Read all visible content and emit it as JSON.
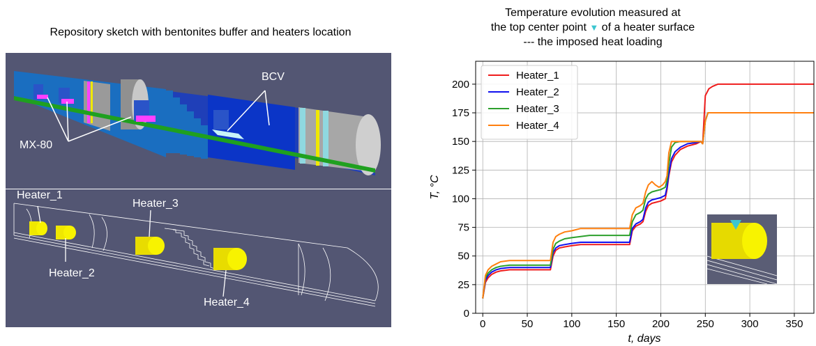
{
  "left_figure": {
    "title": "Repository sketch with bentonites buffer and heaters location",
    "labels": {
      "bcv": "BCV",
      "mx80": "MX-80",
      "heater_1": "Heater_1",
      "heater_2": "Heater_2",
      "heater_3": "Heater_3",
      "heater_4": "Heater_4"
    }
  },
  "right_figure": {
    "title_line_1": "Temperature evolution measured at",
    "title_line_2_pre": "the top center point",
    "title_marker": "▼",
    "title_line_2_post": "of a heater surface",
    "title_line_3": "--- the imposed heat loading"
  },
  "colors": {
    "panel_bg": "#535673",
    "heater_1": "#ef1c1c",
    "heater_2": "#1010ee",
    "heater_3": "#2ca02c",
    "heater_4": "#ff7f0e",
    "marker": "#3cc6d0"
  },
  "chart_data": {
    "type": "line",
    "xlabel": "t,  days",
    "ylabel": "T,  °C",
    "xlim": [
      -8,
      372
    ],
    "ylim": [
      0,
      220
    ],
    "xticks": [
      0,
      50,
      100,
      150,
      200,
      250,
      300,
      350
    ],
    "yticks": [
      0,
      25,
      50,
      75,
      100,
      125,
      150,
      175,
      200
    ],
    "grid": true,
    "legend_position": "top-left",
    "series": [
      {
        "name": "Heater_1",
        "color": "#ef1c1c",
        "points": [
          [
            0,
            13
          ],
          [
            3,
            27
          ],
          [
            6,
            31
          ],
          [
            10,
            34
          ],
          [
            15,
            36
          ],
          [
            20,
            37
          ],
          [
            30,
            38
          ],
          [
            50,
            38
          ],
          [
            76,
            38
          ],
          [
            79,
            50
          ],
          [
            82,
            55
          ],
          [
            86,
            57
          ],
          [
            92,
            58
          ],
          [
            100,
            59
          ],
          [
            110,
            60
          ],
          [
            140,
            60
          ],
          [
            165,
            60
          ],
          [
            168,
            72
          ],
          [
            172,
            76
          ],
          [
            177,
            78
          ],
          [
            180,
            80
          ],
          [
            183,
            89
          ],
          [
            186,
            94
          ],
          [
            190,
            96
          ],
          [
            195,
            97
          ],
          [
            200,
            98
          ],
          [
            205,
            100
          ],
          [
            207,
            108
          ],
          [
            209,
            120
          ],
          [
            212,
            132
          ],
          [
            216,
            138
          ],
          [
            222,
            143
          ],
          [
            230,
            146
          ],
          [
            240,
            148
          ],
          [
            245,
            150
          ],
          [
            247,
            148
          ],
          [
            250,
            190
          ],
          [
            254,
            196
          ],
          [
            258,
            198
          ],
          [
            264,
            200
          ],
          [
            372,
            200
          ]
        ]
      },
      {
        "name": "Heater_2",
        "color": "#1010ee",
        "points": [
          [
            0,
            13
          ],
          [
            3,
            29
          ],
          [
            6,
            33
          ],
          [
            10,
            36
          ],
          [
            15,
            38
          ],
          [
            20,
            39
          ],
          [
            30,
            40
          ],
          [
            50,
            40
          ],
          [
            76,
            40
          ],
          [
            79,
            53
          ],
          [
            82,
            57
          ],
          [
            86,
            59
          ],
          [
            92,
            60
          ],
          [
            100,
            61
          ],
          [
            110,
            62
          ],
          [
            140,
            62
          ],
          [
            165,
            62
          ],
          [
            168,
            74
          ],
          [
            172,
            78
          ],
          [
            177,
            80
          ],
          [
            180,
            82
          ],
          [
            183,
            92
          ],
          [
            186,
            97
          ],
          [
            190,
            99
          ],
          [
            195,
            100
          ],
          [
            200,
            101
          ],
          [
            205,
            103
          ],
          [
            207,
            110
          ],
          [
            209,
            122
          ],
          [
            212,
            135
          ],
          [
            216,
            141
          ],
          [
            222,
            145
          ],
          [
            230,
            148
          ],
          [
            240,
            149
          ],
          [
            245,
            150
          ],
          [
            247,
            148
          ],
          [
            250,
            168
          ],
          [
            253,
            175
          ],
          [
            372,
            175
          ]
        ]
      },
      {
        "name": "Heater_3",
        "color": "#2ca02c",
        "points": [
          [
            0,
            13
          ],
          [
            3,
            31
          ],
          [
            6,
            35
          ],
          [
            10,
            38
          ],
          [
            15,
            40
          ],
          [
            20,
            41
          ],
          [
            30,
            42
          ],
          [
            50,
            42
          ],
          [
            76,
            42
          ],
          [
            79,
            56
          ],
          [
            82,
            61
          ],
          [
            86,
            63
          ],
          [
            92,
            65
          ],
          [
            100,
            66
          ],
          [
            110,
            67
          ],
          [
            120,
            68
          ],
          [
            140,
            68
          ],
          [
            165,
            68
          ],
          [
            168,
            80
          ],
          [
            172,
            86
          ],
          [
            177,
            88
          ],
          [
            180,
            90
          ],
          [
            183,
            100
          ],
          [
            186,
            104
          ],
          [
            190,
            106
          ],
          [
            195,
            107
          ],
          [
            200,
            108
          ],
          [
            205,
            110
          ],
          [
            207,
            116
          ],
          [
            209,
            130
          ],
          [
            212,
            145
          ],
          [
            216,
            149
          ],
          [
            222,
            150
          ],
          [
            240,
            150
          ],
          [
            245,
            150
          ],
          [
            247,
            148
          ],
          [
            250,
            168
          ],
          [
            253,
            175
          ],
          [
            372,
            175
          ]
        ]
      },
      {
        "name": "Heater_4",
        "color": "#ff7f0e",
        "points": [
          [
            0,
            13
          ],
          [
            3,
            33
          ],
          [
            6,
            38
          ],
          [
            10,
            41
          ],
          [
            15,
            43
          ],
          [
            20,
            45
          ],
          [
            30,
            46
          ],
          [
            50,
            46
          ],
          [
            76,
            46
          ],
          [
            79,
            62
          ],
          [
            82,
            67
          ],
          [
            86,
            69
          ],
          [
            92,
            71
          ],
          [
            100,
            72
          ],
          [
            110,
            74
          ],
          [
            120,
            74
          ],
          [
            140,
            74
          ],
          [
            165,
            74
          ],
          [
            168,
            86
          ],
          [
            172,
            92
          ],
          [
            177,
            94
          ],
          [
            180,
            96
          ],
          [
            183,
            106
          ],
          [
            186,
            112
          ],
          [
            190,
            115
          ],
          [
            194,
            112
          ],
          [
            198,
            110
          ],
          [
            202,
            112
          ],
          [
            205,
            115
          ],
          [
            207,
            120
          ],
          [
            209,
            140
          ],
          [
            212,
            150
          ],
          [
            240,
            150
          ],
          [
            245,
            150
          ],
          [
            247,
            148
          ],
          [
            250,
            168
          ],
          [
            253,
            175
          ],
          [
            372,
            175
          ]
        ]
      }
    ]
  }
}
